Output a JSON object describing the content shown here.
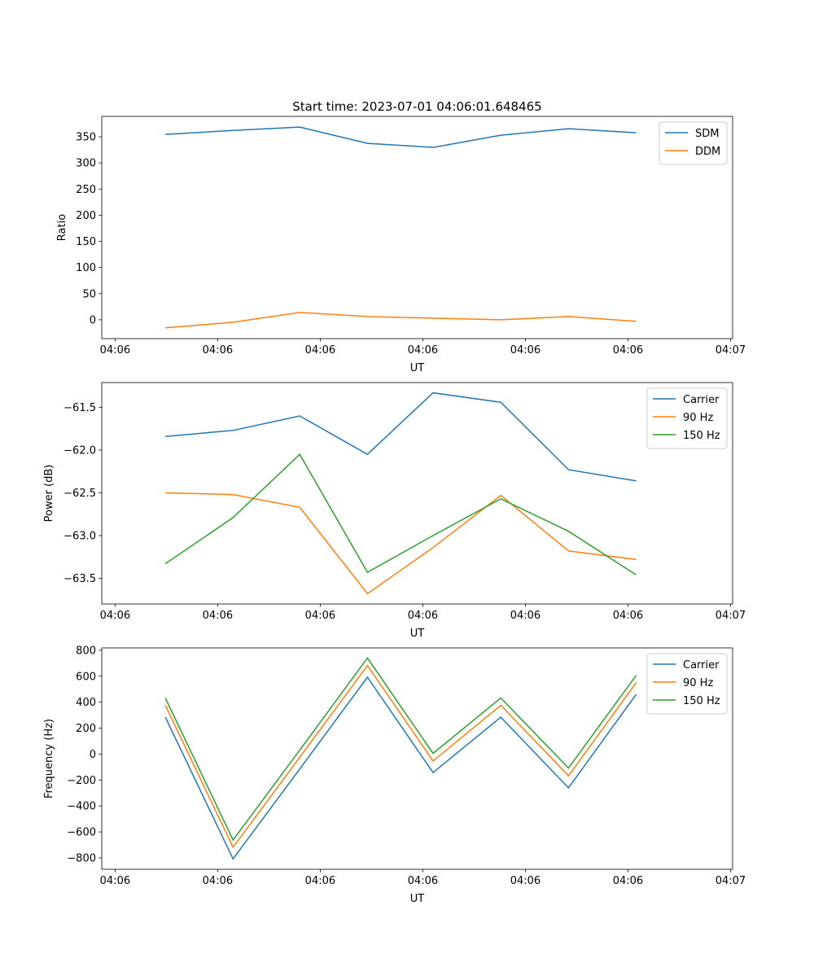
{
  "title": "Start time: 2023-07-01 04:06:01.648465",
  "colors": {
    "blue": "#1f77b4",
    "orange": "#ff7f0e",
    "green": "#2ca02c"
  },
  "chart_data": [
    {
      "type": "line",
      "title": "Start time: 2023-07-01 04:06:01.648465",
      "xlabel": "UT",
      "ylabel": "Ratio",
      "x_seconds_after_0406": [
        4.9,
        11.5,
        18.0,
        24.6,
        31.0,
        37.6,
        44.2,
        50.8
      ],
      "xlim": [
        -1.3,
        60.2
      ],
      "xticks": [
        0,
        10,
        20,
        30,
        40,
        50,
        60
      ],
      "xtick_labels": [
        "04:06",
        "04:06",
        "04:06",
        "04:06",
        "04:06",
        "04:06",
        "04:07"
      ],
      "ylim": [
        -36,
        389
      ],
      "yticks": [
        0,
        50,
        100,
        150,
        200,
        250,
        300,
        350
      ],
      "ytick_labels": [
        "0",
        "50",
        "100",
        "150",
        "200",
        "250",
        "300",
        "350"
      ],
      "legend": "top-right",
      "series": [
        {
          "name": "SDM",
          "color": "#1f77b4",
          "values": [
            354.6,
            362,
            368.6,
            337.5,
            329.7,
            353,
            365.5,
            357.7
          ]
        },
        {
          "name": "DDM",
          "color": "#ff7f0e",
          "values": [
            -15.5,
            -4.7,
            14,
            6.2,
            3.1,
            0,
            6.2,
            -3
          ]
        }
      ]
    },
    {
      "type": "line",
      "xlabel": "UT",
      "ylabel": "Power (dB)",
      "x_seconds_after_0406": [
        4.9,
        11.5,
        18.0,
        24.6,
        31.0,
        37.6,
        44.2,
        50.8
      ],
      "xlim": [
        -1.3,
        60.2
      ],
      "xticks": [
        0,
        10,
        20,
        30,
        40,
        50,
        60
      ],
      "xtick_labels": [
        "04:06",
        "04:06",
        "04:06",
        "04:06",
        "04:06",
        "04:06",
        "04:07"
      ],
      "ylim": [
        -63.8,
        -61.21
      ],
      "yticks": [
        -63.5,
        -63.0,
        -62.5,
        -62.0,
        -61.5
      ],
      "ytick_labels": [
        "−63.5",
        "−63.0",
        "−62.5",
        "−62.0",
        "−61.5"
      ],
      "legend": "top-right",
      "series": [
        {
          "name": "Carrier",
          "color": "#1f77b4",
          "values": [
            -61.84,
            -61.77,
            -61.6,
            -62.05,
            -61.33,
            -61.44,
            -62.23,
            -62.36
          ]
        },
        {
          "name": "90 Hz",
          "color": "#ff7f0e",
          "values": [
            -62.5,
            -62.52,
            -62.67,
            -63.68,
            -63.14,
            -62.53,
            -63.18,
            -63.28
          ]
        },
        {
          "name": "150 Hz",
          "color": "#2ca02c",
          "values": [
            -63.33,
            -62.79,
            -62.05,
            -63.43,
            -63.0,
            -62.57,
            -62.95,
            -63.46
          ]
        }
      ]
    },
    {
      "type": "line",
      "xlabel": "UT",
      "ylabel": "Frequency (Hz)",
      "x_seconds_after_0406": [
        4.9,
        11.5,
        18.0,
        24.6,
        31.0,
        37.6,
        44.2,
        50.8
      ],
      "xlim": [
        -1.3,
        60.2
      ],
      "xticks": [
        0,
        10,
        20,
        30,
        40,
        50,
        60
      ],
      "xtick_labels": [
        "04:06",
        "04:06",
        "04:06",
        "04:06",
        "04:06",
        "04:06",
        "04:07"
      ],
      "ylim": [
        -888,
        818
      ],
      "yticks": [
        -800,
        -600,
        -400,
        -200,
        0,
        200,
        400,
        600,
        800
      ],
      "ytick_labels": [
        "−800",
        "−600",
        "−400",
        "−200",
        "0",
        "200",
        "400",
        "600",
        "800"
      ],
      "legend": "top-right",
      "series": [
        {
          "name": "Carrier",
          "color": "#1f77b4",
          "values": [
            284,
            -808,
            -115,
            592,
            -143,
            284,
            -261,
            460
          ]
        },
        {
          "name": "90 Hz",
          "color": "#ff7f0e",
          "values": [
            376,
            -718,
            -25,
            682,
            -53,
            376,
            -168,
            550
          ]
        },
        {
          "name": "150 Hz",
          "color": "#2ca02c",
          "values": [
            432,
            -662,
            30,
            740,
            5,
            432,
            -108,
            606
          ]
        }
      ]
    }
  ]
}
